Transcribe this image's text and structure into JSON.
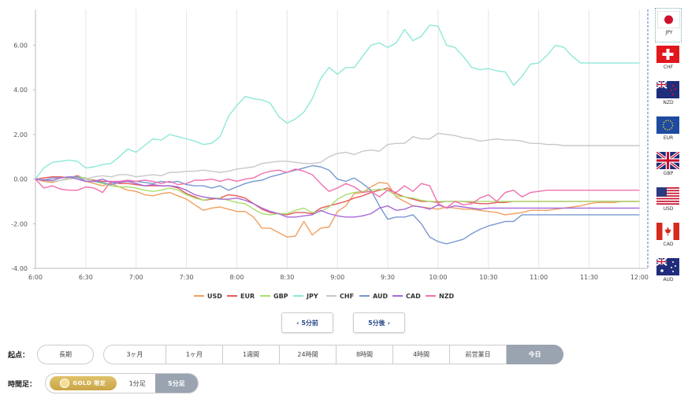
{
  "chart_data": {
    "type": "line",
    "x_ticks": [
      "6:00",
      "6:30",
      "7:00",
      "7:30",
      "8:00",
      "8:30",
      "9:00",
      "9:30",
      "10:00",
      "10:30",
      "11:00",
      "11:30",
      "12:00"
    ],
    "y_ticks": [
      "6.00",
      "4.00",
      "2.00",
      "0.00",
      "-2.00",
      "-4.00"
    ],
    "ylim": [
      -4.0,
      7.6
    ],
    "xlim": [
      "6:00",
      "12:05"
    ],
    "grid": "vertical",
    "legend_position": "bottom",
    "x_step_minutes": 5,
    "series": [
      {
        "name": "USD",
        "color": "#f0a060",
        "values": [
          0,
          -0.1,
          -0.15,
          -0.05,
          0,
          0.1,
          -0.1,
          -0.2,
          -0.3,
          -0.2,
          -0.35,
          -0.5,
          -0.55,
          -0.7,
          -0.75,
          -0.65,
          -0.6,
          -0.75,
          -0.9,
          -1.15,
          -1.4,
          -1.3,
          -1.25,
          -1.35,
          -1.45,
          -1.45,
          -1.7,
          -2.2,
          -2.2,
          -2.4,
          -2.6,
          -2.55,
          -1.9,
          -2.5,
          -2.2,
          -2.15,
          -1.45,
          -1.2,
          -0.65,
          -0.6,
          -0.35,
          -0.15,
          -0.2,
          -0.8,
          -1.0,
          -1.2,
          -1.25,
          -1.3,
          -1.35,
          -1.25,
          -1.3,
          -1.35,
          -1.35,
          -1.4,
          -1.45,
          -1.5,
          -1.6,
          -1.55,
          -1.5,
          -1.4,
          -1.4,
          -1.4,
          -1.35,
          -1.3,
          -1.25,
          -1.2,
          -1.1,
          -1.05,
          -1.05,
          -1.05,
          -1.0,
          -1.0,
          -1.0
        ]
      },
      {
        "name": "EUR",
        "color": "#e85a5a",
        "values": [
          0,
          0.05,
          0.1,
          0.1,
          0.05,
          0.15,
          0.0,
          -0.05,
          -0.1,
          -0.1,
          -0.2,
          -0.2,
          -0.25,
          -0.3,
          -0.3,
          -0.3,
          -0.3,
          -0.4,
          -0.65,
          -0.8,
          -0.95,
          -0.9,
          -0.85,
          -0.7,
          -0.75,
          -0.85,
          -1.1,
          -1.35,
          -1.5,
          -1.55,
          -1.6,
          -1.5,
          -1.5,
          -1.55,
          -1.3,
          -1.2,
          -1.1,
          -1.0,
          -0.85,
          -0.75,
          -0.6,
          -0.5,
          -0.4,
          -0.65,
          -0.8,
          -0.9,
          -1.0,
          -1.0,
          -1.05,
          -1.0,
          -1.0,
          -1.0,
          -1.05,
          -1.1,
          -1.1,
          -1.05,
          -1.05,
          -1.0,
          -1.0,
          -1.0,
          -1.0,
          -1.0,
          -1.0,
          -1.0,
          -1.0,
          -1.0,
          -1.0,
          -1.0,
          -1.0,
          -1.0,
          -1.0,
          -1.0,
          -1.0
        ]
      },
      {
        "name": "GBP",
        "color": "#a8e070",
        "values": [
          0,
          -0.05,
          -0.1,
          -0.05,
          0.05,
          0.1,
          0.05,
          -0.1,
          -0.2,
          -0.3,
          -0.35,
          -0.35,
          -0.4,
          -0.5,
          -0.55,
          -0.5,
          -0.4,
          -0.5,
          -0.7,
          -0.85,
          -0.95,
          -0.85,
          -0.85,
          -0.95,
          -1.05,
          -1.1,
          -1.35,
          -1.55,
          -1.6,
          -1.55,
          -1.55,
          -1.4,
          -1.3,
          -1.5,
          -1.45,
          -1.25,
          -0.9,
          -0.7,
          -0.6,
          -0.55,
          -0.5,
          -0.45,
          -0.5,
          -0.75,
          -0.8,
          -0.85,
          -0.95,
          -1.0,
          -1.0,
          -1.0,
          -1.0,
          -1.0,
          -1.0,
          -1.0,
          -1.0,
          -1.0,
          -1.0,
          -1.0,
          -1.0,
          -1.0,
          -1.0,
          -1.0,
          -1.0,
          -1.0,
          -1.0,
          -1.0,
          -1.0,
          -1.0,
          -1.0,
          -1.0,
          -1.0,
          -1.0,
          -1.0
        ]
      },
      {
        "name": "JPY",
        "color": "#8ee8d8",
        "values": [
          0,
          0.5,
          0.75,
          0.8,
          0.85,
          0.8,
          0.5,
          0.55,
          0.65,
          0.7,
          1.0,
          1.35,
          1.2,
          1.5,
          1.8,
          1.75,
          2.0,
          1.9,
          1.8,
          1.7,
          1.55,
          1.6,
          1.9,
          2.8,
          3.3,
          3.7,
          3.6,
          3.55,
          3.4,
          2.8,
          2.5,
          2.7,
          3.0,
          3.6,
          4.5,
          5.0,
          4.7,
          5.0,
          5.0,
          5.5,
          6.0,
          6.1,
          5.9,
          6.1,
          6.7,
          6.2,
          6.4,
          6.9,
          6.85,
          6.0,
          5.9,
          5.5,
          5.0,
          4.9,
          4.95,
          4.85,
          4.8,
          4.2,
          4.6,
          5.15,
          5.2,
          5.55,
          6.0,
          5.9,
          5.5,
          5.2,
          5.2,
          5.2,
          5.2,
          5.2,
          5.2,
          5.2,
          5.2
        ]
      },
      {
        "name": "CHF",
        "color": "#c8c8c8",
        "values": [
          0,
          0.0,
          -0.1,
          -0.05,
          0.0,
          0.05,
          0.0,
          0.1,
          0.15,
          0.1,
          0.2,
          0.2,
          0.1,
          0.15,
          0.2,
          0.15,
          0.3,
          0.3,
          0.35,
          0.35,
          0.4,
          0.35,
          0.3,
          0.35,
          0.45,
          0.5,
          0.55,
          0.7,
          0.75,
          0.8,
          0.8,
          0.75,
          0.7,
          0.7,
          0.75,
          1.0,
          1.15,
          1.2,
          1.1,
          1.25,
          1.3,
          1.25,
          1.55,
          1.6,
          1.6,
          1.9,
          1.8,
          1.8,
          2.05,
          2.0,
          1.95,
          1.85,
          1.8,
          1.7,
          1.75,
          1.8,
          1.75,
          1.75,
          1.7,
          1.6,
          1.6,
          1.55,
          1.55,
          1.5,
          1.5,
          1.5,
          1.5,
          1.5,
          1.5,
          1.5,
          1.5,
          1.5,
          1.5
        ]
      },
      {
        "name": "AUD",
        "color": "#7898d0",
        "values": [
          0,
          -0.05,
          0.05,
          0.05,
          0.1,
          0.1,
          -0.1,
          -0.1,
          -0.15,
          -0.25,
          -0.15,
          -0.1,
          -0.1,
          -0.15,
          -0.2,
          -0.1,
          -0.15,
          -0.1,
          -0.25,
          -0.3,
          -0.3,
          -0.4,
          -0.3,
          -0.5,
          -0.35,
          -0.2,
          -0.1,
          -0.05,
          0.1,
          0.2,
          0.3,
          0.4,
          0.5,
          0.6,
          0.55,
          0.4,
          0.0,
          -0.1,
          0.05,
          -0.2,
          -0.5,
          -1.2,
          -1.8,
          -1.7,
          -1.7,
          -1.6,
          -2.0,
          -2.6,
          -2.8,
          -2.9,
          -2.8,
          -2.7,
          -2.45,
          -2.25,
          -2.1,
          -2.0,
          -1.9,
          -1.9,
          -1.6,
          -1.6,
          -1.6,
          -1.6,
          -1.6,
          -1.6,
          -1.6,
          -1.6,
          -1.6,
          -1.6,
          -1.6,
          -1.6,
          -1.6,
          -1.6,
          -1.6
        ]
      },
      {
        "name": "CAD",
        "color": "#a868d8",
        "values": [
          0,
          -0.05,
          -0.05,
          0.05,
          0.1,
          0.0,
          -0.1,
          -0.1,
          0.0,
          -0.15,
          -0.15,
          -0.1,
          -0.2,
          -0.3,
          -0.25,
          -0.3,
          -0.3,
          -0.35,
          -0.5,
          -0.7,
          -0.8,
          -0.85,
          -0.9,
          -0.9,
          -0.85,
          -0.95,
          -1.1,
          -1.3,
          -1.45,
          -1.55,
          -1.7,
          -1.7,
          -1.65,
          -1.6,
          -1.4,
          -1.55,
          -1.65,
          -1.7,
          -1.7,
          -1.65,
          -1.55,
          -1.3,
          -1.2,
          -1.4,
          -1.35,
          -1.2,
          -1.25,
          -1.35,
          -1.15,
          -1.3,
          -1.2,
          -1.25,
          -1.3,
          -1.35,
          -1.3,
          -1.3,
          -1.3,
          -1.3,
          -1.3,
          -1.3,
          -1.3,
          -1.3,
          -1.3,
          -1.3,
          -1.3,
          -1.3,
          -1.3,
          -1.3,
          -1.3,
          -1.3,
          -1.3,
          -1.3,
          -1.3
        ]
      },
      {
        "name": "NZD",
        "color": "#f070b0",
        "values": [
          0,
          -0.4,
          -0.3,
          -0.45,
          -0.5,
          -0.5,
          -0.35,
          -0.4,
          -0.6,
          -0.1,
          -0.1,
          -0.05,
          -0.1,
          -0.05,
          -0.1,
          -0.2,
          -0.1,
          -0.25,
          -0.2,
          -0.05,
          -0.05,
          0.0,
          -0.1,
          0.0,
          -0.1,
          0.0,
          0.05,
          0.25,
          0.35,
          0.4,
          0.3,
          0.45,
          0.35,
          0.2,
          -0.2,
          -0.55,
          -0.4,
          -0.2,
          -0.35,
          -0.6,
          -0.55,
          -0.8,
          -0.5,
          -0.6,
          -0.3,
          -0.55,
          -0.2,
          -0.3,
          -1.1,
          -1.3,
          -1.0,
          -1.15,
          -1.1,
          -0.85,
          -0.7,
          -1.0,
          -0.6,
          -0.5,
          -0.8,
          -0.6,
          -0.55,
          -0.5,
          -0.5,
          -0.5,
          -0.5,
          -0.5,
          -0.5,
          -0.5,
          -0.5,
          -0.5,
          -0.5,
          -0.5,
          -0.5
        ]
      }
    ]
  },
  "flags": [
    {
      "code": "JPY"
    },
    {
      "code": "CHF"
    },
    {
      "code": "NZD"
    },
    {
      "code": "EUR"
    },
    {
      "code": "GBP"
    },
    {
      "code": "USD"
    },
    {
      "code": "CAD"
    },
    {
      "code": "AUD"
    }
  ],
  "nav": {
    "prev_label": "5分前",
    "next_label": "5分後",
    "prev_icon": "chevron-left-icon",
    "next_icon": "chevron-right-icon"
  },
  "start_point": {
    "label": "起点：",
    "options": [
      "長期",
      "3ヶ月",
      "1ヶ月",
      "1週間",
      "24時間",
      "8時間",
      "4時間",
      "前営業日",
      "今日"
    ],
    "selected": "今日"
  },
  "interval": {
    "label": "時間足：",
    "gold_label": "GOLD 限定",
    "options": [
      "1分足",
      "5分足"
    ],
    "selected": "5分足"
  }
}
